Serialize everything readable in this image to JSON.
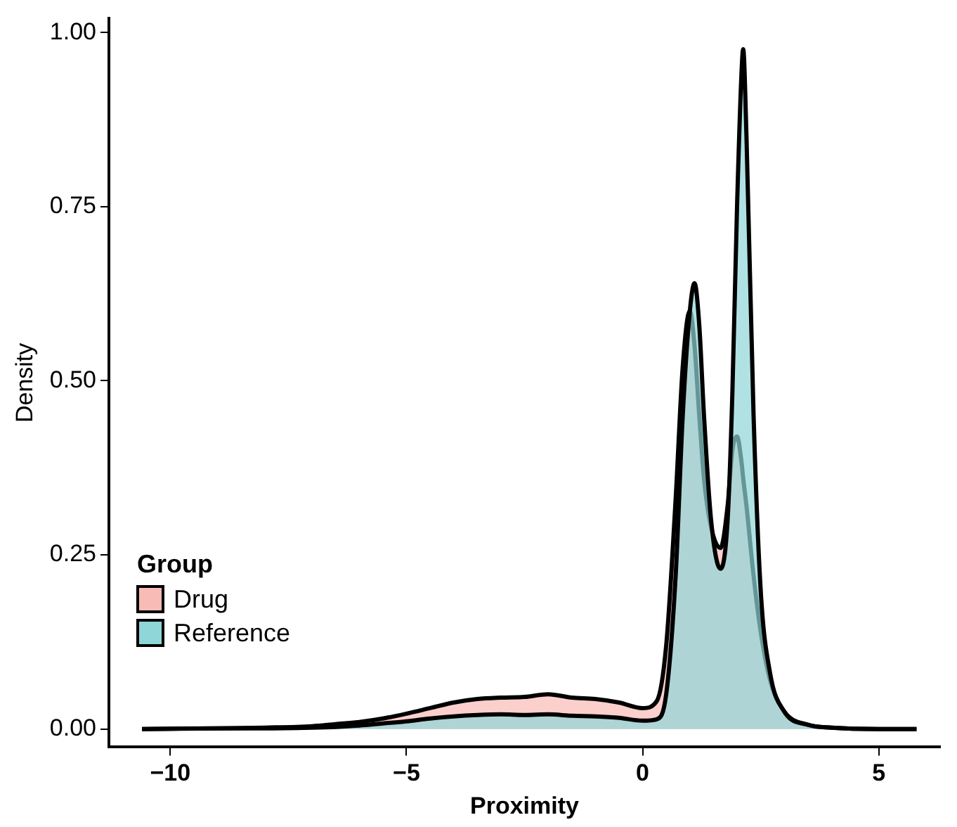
{
  "chart_data": {
    "type": "area",
    "xlabel": "Proximity",
    "ylabel": "Density",
    "legend_title": "Group",
    "legend": "bottom left",
    "grid": false,
    "x": [
      -10.6,
      -9,
      -8,
      -7,
      -6.5,
      -6,
      -5.5,
      -5,
      -4.5,
      -4,
      -3.5,
      -3,
      -2.5,
      -2,
      -1.5,
      -1,
      -0.5,
      0,
      0.3,
      0.5,
      0.7,
      0.85,
      1.0,
      1.1,
      1.2,
      1.3,
      1.45,
      1.65,
      1.8,
      1.9,
      2.0,
      2.1,
      2.13,
      2.2,
      2.35,
      2.5,
      2.7,
      3.0,
      3.5,
      4,
      5,
      5.8
    ],
    "series": [
      {
        "name": "Drug",
        "color": "#f9bbb6",
        "values": [
          0,
          0.001,
          0.002,
          0.004,
          0.007,
          0.01,
          0.015,
          0.022,
          0.03,
          0.038,
          0.043,
          0.045,
          0.046,
          0.05,
          0.045,
          0.043,
          0.038,
          0.03,
          0.04,
          0.12,
          0.33,
          0.52,
          0.6,
          0.55,
          0.45,
          0.36,
          0.29,
          0.26,
          0.32,
          0.4,
          0.42,
          0.38,
          0.36,
          0.32,
          0.22,
          0.14,
          0.07,
          0.025,
          0.006,
          0.002,
          0,
          0
        ]
      },
      {
        "name": "Reference",
        "color": "#8fd6d8",
        "values": [
          0,
          0.001,
          0.001,
          0.002,
          0.003,
          0.005,
          0.008,
          0.011,
          0.015,
          0.018,
          0.02,
          0.021,
          0.02,
          0.021,
          0.019,
          0.018,
          0.016,
          0.012,
          0.014,
          0.05,
          0.22,
          0.45,
          0.6,
          0.64,
          0.58,
          0.45,
          0.3,
          0.23,
          0.3,
          0.48,
          0.75,
          0.95,
          0.976,
          0.85,
          0.45,
          0.2,
          0.08,
          0.025,
          0.006,
          0.002,
          0,
          0
        ]
      }
    ],
    "xlim": [
      -11.3,
      6.3
    ],
    "xticks": [
      -10,
      -5,
      0,
      5
    ],
    "ylim": [
      -0.026,
      1.02
    ],
    "yticks": [
      {
        "value": 0,
        "label": "0.00"
      },
      {
        "value": 0.25,
        "label": "0.25"
      },
      {
        "value": 0.5,
        "label": "0.50"
      },
      {
        "value": 0.75,
        "label": "0.75"
      },
      {
        "value": 1,
        "label": "1.00"
      }
    ]
  }
}
